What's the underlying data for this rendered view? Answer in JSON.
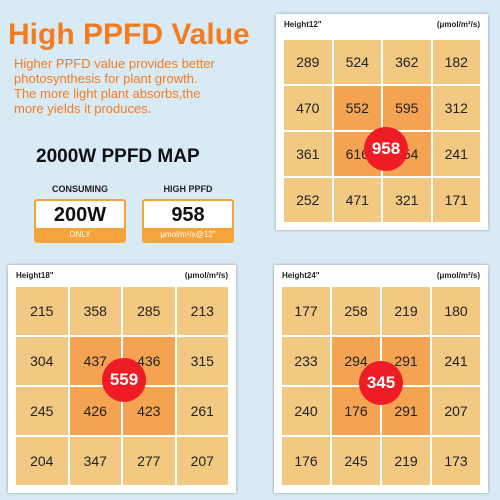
{
  "title": "High PPFD Value",
  "description": [
    "Higher PPFD value provides better",
    "photosynthesis for plant growth.",
    "The more light plant absorbs,the",
    "more yields it produces."
  ],
  "map_title": "2000W PPFD MAP",
  "consuming": {
    "label": "CONSUMING",
    "value": "200W",
    "sub": "ONLY"
  },
  "high_ppfd": {
    "label": "HIGH PPFD",
    "value": "958",
    "sub": "μmol/m²/s@12\""
  },
  "colors": {
    "accent": "#f47b20",
    "cell": "#f2c983",
    "cell_hot": "#f4a353",
    "center": "#ee1c25"
  },
  "maps": {
    "h12": {
      "height": "Height12\"",
      "unit": "(μmol/m²/s)",
      "center": "958",
      "cells": [
        "289",
        "524",
        "362",
        "182",
        "470",
        "552",
        "595",
        "312",
        "361",
        "616",
        "554",
        "241",
        "252",
        "471",
        "321",
        "171"
      ]
    },
    "h18": {
      "height": "Height18\"",
      "unit": "(μmol/m²/s)",
      "center": "559",
      "cells": [
        "215",
        "358",
        "285",
        "213",
        "304",
        "437",
        "436",
        "315",
        "245",
        "426",
        "423",
        "261",
        "204",
        "347",
        "277",
        "207"
      ]
    },
    "h24": {
      "height": "Height24\"",
      "unit": "(μmol/m²/s)",
      "center": "345",
      "cells": [
        "177",
        "258",
        "219",
        "180",
        "233",
        "294",
        "291",
        "241",
        "240",
        "176",
        "291",
        "207",
        "176",
        "245",
        "219",
        "173"
      ]
    }
  }
}
